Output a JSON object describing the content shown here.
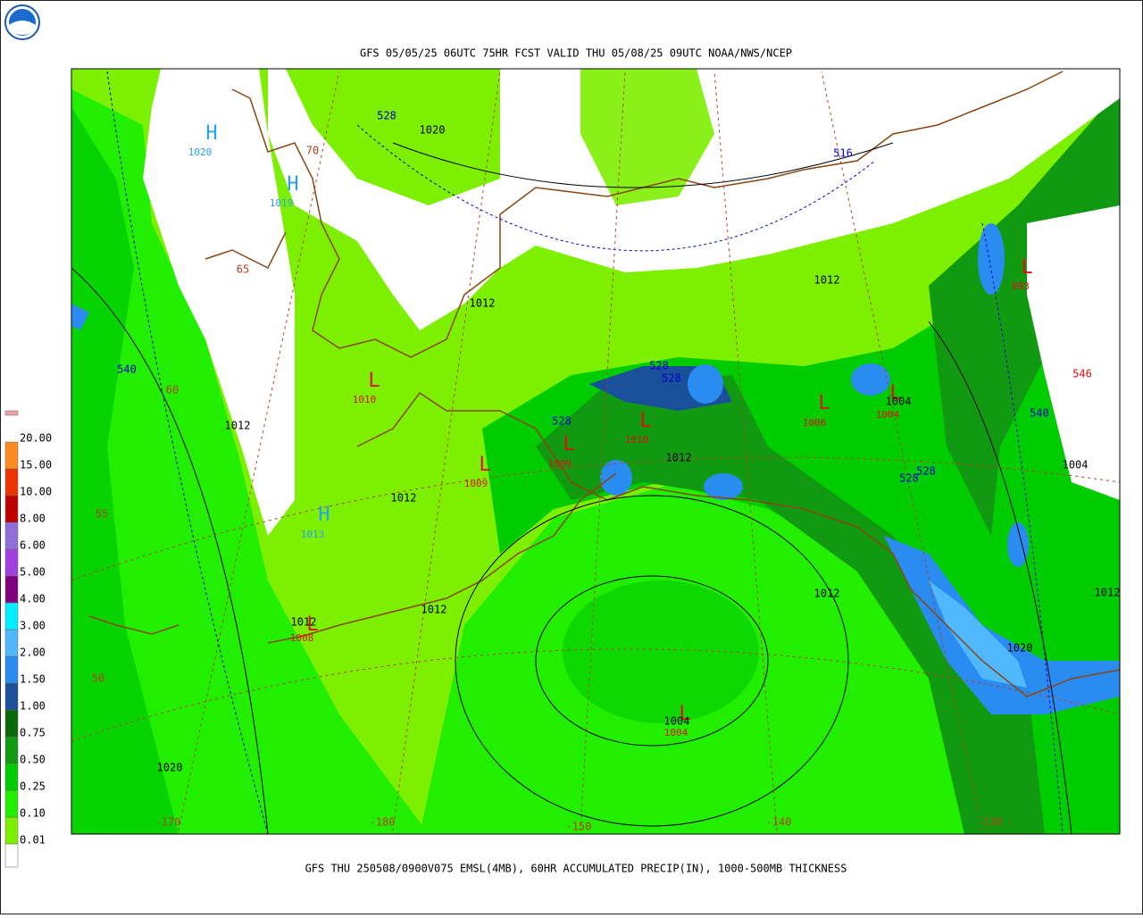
{
  "header": {
    "title": "GFS 05/05/25 06UTC 75HR FCST VALID THU 05/08/25 09UTC NOAA/NWS/NCEP"
  },
  "footer": {
    "caption": "GFS THU 250508/0900V075 EMSL(4MB), 60HR ACCUMULATED PRECIP(IN), 1000-500MB THICKNESS"
  },
  "legend": {
    "labels": [
      "0.01",
      "0.10",
      "0.25",
      "0.50",
      "0.75",
      "1.00",
      "1.50",
      "2.00",
      "3.00",
      "4.00",
      "5.00",
      "6.00",
      "8.00",
      "10.00",
      "15.00",
      "20.00"
    ],
    "swatches": [
      "#ffffff",
      "#7cf000",
      "#22ee00",
      "#00cc00",
      "#119a11",
      "#0a6a0a",
      "#1a4f9a",
      "#2a8cf0",
      "#50b8ff",
      "#00eeff",
      "#800080",
      "#a040e0",
      "#9070d8",
      "#c00000",
      "#ee3300",
      "#ff8a20",
      "#f0a0a8"
    ]
  },
  "map": {
    "centers": [
      {
        "symbol": "H",
        "pressure": "1020"
      },
      {
        "symbol": "H",
        "pressure": "1019"
      },
      {
        "symbol": "L",
        "pressure": "1010"
      },
      {
        "symbol": "H",
        "pressure": "1013"
      },
      {
        "symbol": "L",
        "pressure": "1009"
      },
      {
        "symbol": "L",
        "pressure": "1009"
      },
      {
        "symbol": "L",
        "pressure": "1010"
      },
      {
        "symbol": "L",
        "pressure": "1006"
      },
      {
        "symbol": "L",
        "pressure": "1004"
      },
      {
        "symbol": "L",
        "pressure": "993"
      },
      {
        "symbol": "L",
        "pressure": "1004"
      },
      {
        "symbol": "L",
        "pressure": "1008"
      }
    ],
    "high_color": "#2aa0f0",
    "low_color": "#e01010",
    "isobar_color": "#000000",
    "isobar_labels": [
      "1020",
      "1012",
      "1012",
      "1012",
      "1012",
      "1012",
      "1012",
      "1012",
      "1012",
      "1004",
      "1012",
      "1020",
      "1020",
      "1004",
      "1004"
    ],
    "thickness_color": "#0000cc",
    "thickness_labels": [
      "528",
      "516",
      "540",
      "528",
      "528",
      "528",
      "528",
      "528",
      "540"
    ],
    "warm_thickness_color": "#e01010",
    "warm_thickness_labels": [
      "546"
    ],
    "grid_color": "#b04020",
    "lat_labels": [
      "70",
      "65",
      "60",
      "55",
      "50"
    ],
    "lon_labels": [
      "-170",
      "-180",
      "-150",
      "-140",
      "-130"
    ]
  }
}
